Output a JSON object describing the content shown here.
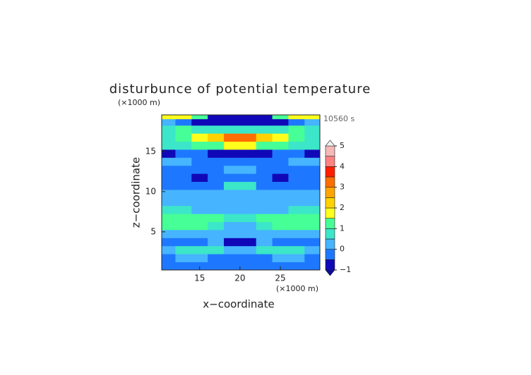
{
  "chart_data": {
    "type": "contour",
    "title": "disturbunce of potential temperature",
    "x_unit": "(×1000 m)",
    "y_unit": "(×1000 m)",
    "time_label": "10560 s",
    "xlabel": "x−coordinate",
    "ylabel": "z−coordinate",
    "xlim": [
      10.3,
      29.9
    ],
    "ylim": [
      0.25,
      19.55
    ],
    "xticks": [
      15,
      20,
      25
    ],
    "yticks": [
      5,
      10,
      15
    ],
    "x": [
      11,
      13,
      15,
      17,
      19,
      21,
      23,
      25,
      27,
      29
    ],
    "z": [
      0.75,
      1.75,
      2.75,
      3.75,
      4.75,
      5.75,
      6.75,
      7.75,
      8.75,
      9.75,
      10.75,
      11.75,
      12.75,
      13.75,
      14.75,
      15.75,
      16.75,
      17.75,
      18.75,
      19.35
    ],
    "field": [
      [
        -0.25,
        -0.25,
        -0.25,
        -0.25,
        -0.25,
        -0.25,
        -0.25,
        -0.25,
        -0.25,
        -0.25
      ],
      [
        -0.25,
        0.25,
        0.25,
        -0.25,
        -0.25,
        -0.25,
        -0.25,
        0.25,
        0.25,
        -0.25
      ],
      [
        0.25,
        0.75,
        0.75,
        0.75,
        0.25,
        0.25,
        0.75,
        0.75,
        0.75,
        0.25
      ],
      [
        -0.25,
        -0.25,
        -0.25,
        0.25,
        -0.75,
        -0.75,
        0.25,
        -0.25,
        -0.25,
        -0.25
      ],
      [
        0.25,
        0.25,
        0.25,
        0.25,
        0.25,
        0.25,
        0.25,
        0.25,
        0.25,
        0.25
      ],
      [
        1.25,
        1.25,
        1.25,
        0.75,
        0.25,
        0.25,
        0.75,
        1.25,
        1.25,
        1.25
      ],
      [
        1.25,
        1.25,
        1.25,
        1.25,
        0.75,
        0.75,
        1.25,
        1.25,
        1.25,
        1.25
      ],
      [
        0.75,
        0.75,
        0.25,
        0.25,
        0.25,
        0.25,
        0.25,
        0.25,
        0.75,
        0.75
      ],
      [
        0.25,
        0.25,
        0.25,
        0.25,
        0.25,
        0.25,
        0.25,
        0.25,
        0.25,
        0.25
      ],
      [
        0.25,
        0.25,
        0.25,
        0.25,
        0.25,
        0.25,
        0.25,
        0.25,
        0.25,
        0.25
      ],
      [
        -0.25,
        -0.25,
        -0.25,
        -0.25,
        0.75,
        0.75,
        -0.25,
        -0.25,
        -0.25,
        -0.25
      ],
      [
        -0.25,
        -0.25,
        -0.75,
        -0.25,
        -0.25,
        -0.25,
        -0.25,
        -0.75,
        -0.25,
        -0.25
      ],
      [
        -0.25,
        -0.25,
        -0.25,
        -0.25,
        0.25,
        0.25,
        -0.25,
        -0.25,
        -0.25,
        -0.25
      ],
      [
        0.25,
        0.25,
        -0.25,
        -0.25,
        -0.25,
        -0.25,
        -0.25,
        -0.25,
        0.25,
        0.25
      ],
      [
        -0.75,
        -0.25,
        -0.25,
        -0.75,
        -0.75,
        -0.75,
        -0.75,
        -0.25,
        -0.25,
        -0.75
      ],
      [
        0.75,
        0.75,
        1.25,
        1.25,
        1.75,
        1.75,
        1.25,
        1.25,
        0.75,
        0.75
      ],
      [
        0.75,
        1.25,
        1.75,
        2.25,
        3.25,
        3.25,
        2.25,
        1.75,
        1.25,
        0.75
      ],
      [
        0.75,
        1.25,
        0.75,
        0.75,
        0.75,
        0.75,
        0.75,
        0.75,
        1.25,
        0.75
      ],
      [
        0.25,
        -0.25,
        -0.75,
        -0.75,
        -0.75,
        -0.75,
        -0.75,
        -0.75,
        -0.25,
        0.25
      ],
      [
        1.75,
        1.75,
        1.25,
        -0.75,
        -0.75,
        -0.75,
        -0.75,
        1.25,
        1.75,
        1.75
      ]
    ],
    "levels": [
      -1,
      -0.5,
      0,
      0.5,
      1,
      1.5,
      2,
      2.5,
      3,
      3.5,
      4,
      4.5,
      5
    ],
    "colors": [
      "#1008b8",
      "#1e78ff",
      "#46b4ff",
      "#3ce6c8",
      "#46ff96",
      "#ffff1e",
      "#ffd200",
      "#ffa500",
      "#ff6e00",
      "#ff1e00",
      "#ff8282",
      "#f5b9b9"
    ],
    "under_color": "#0a0aa0",
    "over_color": "#f4f4f4",
    "colorbar_ticks": [
      {
        "value": -1,
        "label": "−1"
      },
      0,
      1,
      2,
      3,
      4,
      5
    ]
  }
}
